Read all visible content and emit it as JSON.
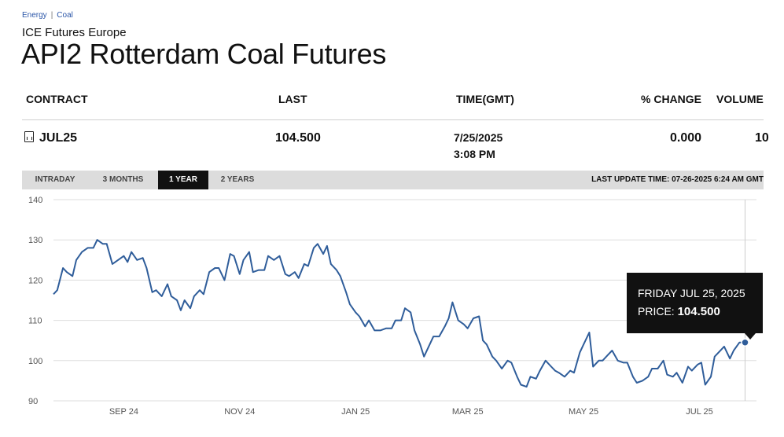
{
  "breadcrumb": [
    "Energy",
    "Coal"
  ],
  "exchange": "ICE Futures Europe",
  "title": "API2 Rotterdam Coal Futures",
  "table": {
    "headers": {
      "contract": "CONTRACT",
      "last": "LAST",
      "time": "TIME(GMT)",
      "change": "% CHANGE",
      "volume": "VOLUME"
    },
    "row": {
      "contract": "JUL25",
      "last": "104.500",
      "date": "7/25/2025",
      "time": "3:08 PM",
      "change": "0.000",
      "volume": "10"
    }
  },
  "tabs": [
    "INTRADAY",
    "3 MONTHS",
    "1 YEAR",
    "2 YEARS"
  ],
  "active_tab": "1 YEAR",
  "last_update": "LAST UPDATE TIME: 07-26-2025 6:24 AM GMT",
  "tooltip": {
    "date": "FRIDAY JUL 25, 2025",
    "price_label": "PRICE:",
    "price": "104.500"
  },
  "colors": {
    "line": "#2f5d9a",
    "grid": "#dddddd",
    "tooltip_bg": "#111111",
    "tab_bar": "#dcdcdc"
  },
  "chart_data": {
    "type": "line",
    "ylim": [
      90,
      140
    ],
    "yticks": [
      90,
      100,
      110,
      120,
      130,
      140
    ],
    "xlim": [
      "2024-07-26",
      "2025-07-31"
    ],
    "xticks": [
      {
        "date": "2024-09-01",
        "label": "SEP 24"
      },
      {
        "date": "2024-11-01",
        "label": "NOV 24"
      },
      {
        "date": "2025-01-01",
        "label": "JAN 25"
      },
      {
        "date": "2025-03-01",
        "label": "MAR 25"
      },
      {
        "date": "2025-05-01",
        "label": "MAY 25"
      },
      {
        "date": "2025-07-01",
        "label": "JUL 25"
      }
    ],
    "grid": true,
    "series": [
      {
        "points": [
          [
            "2024-07-26",
            116.5
          ],
          [
            "2024-07-28",
            117.5
          ],
          [
            "2024-07-31",
            123
          ],
          [
            "2024-08-02",
            122
          ],
          [
            "2024-08-05",
            121
          ],
          [
            "2024-08-07",
            125
          ],
          [
            "2024-08-10",
            127
          ],
          [
            "2024-08-13",
            128
          ],
          [
            "2024-08-16",
            128
          ],
          [
            "2024-08-18",
            130
          ],
          [
            "2024-08-21",
            129
          ],
          [
            "2024-08-23",
            129
          ],
          [
            "2024-08-26",
            124
          ],
          [
            "2024-08-29",
            125
          ],
          [
            "2024-09-01",
            126
          ],
          [
            "2024-09-03",
            124.5
          ],
          [
            "2024-09-05",
            127
          ],
          [
            "2024-09-08",
            125
          ],
          [
            "2024-09-11",
            125.5
          ],
          [
            "2024-09-13",
            123
          ],
          [
            "2024-09-16",
            117
          ],
          [
            "2024-09-18",
            117.5
          ],
          [
            "2024-09-21",
            116
          ],
          [
            "2024-09-24",
            119
          ],
          [
            "2024-09-26",
            116
          ],
          [
            "2024-09-29",
            115
          ],
          [
            "2024-10-01",
            112.5
          ],
          [
            "2024-10-03",
            115
          ],
          [
            "2024-10-06",
            113
          ],
          [
            "2024-10-08",
            116
          ],
          [
            "2024-10-11",
            117.5
          ],
          [
            "2024-10-13",
            116.5
          ],
          [
            "2024-10-16",
            122
          ],
          [
            "2024-10-19",
            123
          ],
          [
            "2024-10-21",
            123
          ],
          [
            "2024-10-24",
            120
          ],
          [
            "2024-10-27",
            126.5
          ],
          [
            "2024-10-29",
            126
          ],
          [
            "2024-11-01",
            121.5
          ],
          [
            "2024-11-03",
            125
          ],
          [
            "2024-11-06",
            127
          ],
          [
            "2024-11-08",
            122
          ],
          [
            "2024-11-11",
            122.5
          ],
          [
            "2024-11-14",
            122.5
          ],
          [
            "2024-11-16",
            126
          ],
          [
            "2024-11-19",
            125
          ],
          [
            "2024-11-22",
            126
          ],
          [
            "2024-11-25",
            121.5
          ],
          [
            "2024-11-27",
            121
          ],
          [
            "2024-11-30",
            122
          ],
          [
            "2024-12-02",
            120.5
          ],
          [
            "2024-12-05",
            124
          ],
          [
            "2024-12-07",
            123.5
          ],
          [
            "2024-12-10",
            128
          ],
          [
            "2024-12-12",
            129
          ],
          [
            "2024-12-15",
            126.5
          ],
          [
            "2024-12-17",
            128.5
          ],
          [
            "2024-12-19",
            124
          ],
          [
            "2024-12-22",
            122.5
          ],
          [
            "2024-12-24",
            121
          ],
          [
            "2024-12-27",
            117
          ],
          [
            "2024-12-29",
            114
          ],
          [
            "2025-01-01",
            112
          ],
          [
            "2025-01-03",
            111
          ],
          [
            "2025-01-06",
            108.5
          ],
          [
            "2025-01-08",
            110
          ],
          [
            "2025-01-11",
            107.5
          ],
          [
            "2025-01-14",
            107.5
          ],
          [
            "2025-01-17",
            108
          ],
          [
            "2025-01-20",
            108
          ],
          [
            "2025-01-22",
            110
          ],
          [
            "2025-01-25",
            110
          ],
          [
            "2025-01-27",
            113
          ],
          [
            "2025-01-30",
            112
          ],
          [
            "2025-02-01",
            107.5
          ],
          [
            "2025-02-04",
            104
          ],
          [
            "2025-02-06",
            101
          ],
          [
            "2025-02-09",
            104
          ],
          [
            "2025-02-11",
            106
          ],
          [
            "2025-02-14",
            106
          ],
          [
            "2025-02-17",
            108.5
          ],
          [
            "2025-02-19",
            110.5
          ],
          [
            "2025-02-21",
            114.5
          ],
          [
            "2025-02-24",
            110
          ],
          [
            "2025-02-27",
            109
          ],
          [
            "2025-03-01",
            108
          ],
          [
            "2025-03-04",
            110.5
          ],
          [
            "2025-03-07",
            111
          ],
          [
            "2025-03-09",
            105
          ],
          [
            "2025-03-11",
            104
          ],
          [
            "2025-03-14",
            101
          ],
          [
            "2025-03-16",
            100
          ],
          [
            "2025-03-19",
            98
          ],
          [
            "2025-03-22",
            100
          ],
          [
            "2025-03-24",
            99.5
          ],
          [
            "2025-03-27",
            96
          ],
          [
            "2025-03-29",
            94
          ],
          [
            "2025-04-01",
            93.5
          ],
          [
            "2025-04-03",
            96
          ],
          [
            "2025-04-06",
            95.5
          ],
          [
            "2025-04-08",
            97.5
          ],
          [
            "2025-04-11",
            100
          ],
          [
            "2025-04-14",
            98.5
          ],
          [
            "2025-04-16",
            97.5
          ],
          [
            "2025-04-18",
            97
          ],
          [
            "2025-04-21",
            96
          ],
          [
            "2025-04-24",
            97.5
          ],
          [
            "2025-04-26",
            97
          ],
          [
            "2025-04-29",
            102
          ],
          [
            "2025-05-01",
            104
          ],
          [
            "2025-05-04",
            107
          ],
          [
            "2025-05-06",
            98.5
          ],
          [
            "2025-05-09",
            100
          ],
          [
            "2025-05-11",
            100
          ],
          [
            "2025-05-14",
            101.5
          ],
          [
            "2025-05-16",
            102.5
          ],
          [
            "2025-05-19",
            100
          ],
          [
            "2025-05-22",
            99.5
          ],
          [
            "2025-05-24",
            99.5
          ],
          [
            "2025-05-27",
            96
          ],
          [
            "2025-05-29",
            94.5
          ],
          [
            "2025-06-01",
            95
          ],
          [
            "2025-06-04",
            96
          ],
          [
            "2025-06-06",
            98
          ],
          [
            "2025-06-09",
            98
          ],
          [
            "2025-06-12",
            100
          ],
          [
            "2025-06-14",
            96.5
          ],
          [
            "2025-06-17",
            96
          ],
          [
            "2025-06-19",
            97
          ],
          [
            "2025-06-22",
            94.5
          ],
          [
            "2025-06-25",
            98.5
          ],
          [
            "2025-06-27",
            97.5
          ],
          [
            "2025-06-30",
            99
          ],
          [
            "2025-07-02",
            99.5
          ],
          [
            "2025-07-04",
            94
          ],
          [
            "2025-07-07",
            96
          ],
          [
            "2025-07-09",
            101
          ],
          [
            "2025-07-11",
            102
          ],
          [
            "2025-07-14",
            103.5
          ],
          [
            "2025-07-17",
            100.5
          ],
          [
            "2025-07-19",
            102.5
          ],
          [
            "2025-07-22",
            104.5
          ],
          [
            "2025-07-25",
            104.5
          ]
        ]
      }
    ]
  }
}
